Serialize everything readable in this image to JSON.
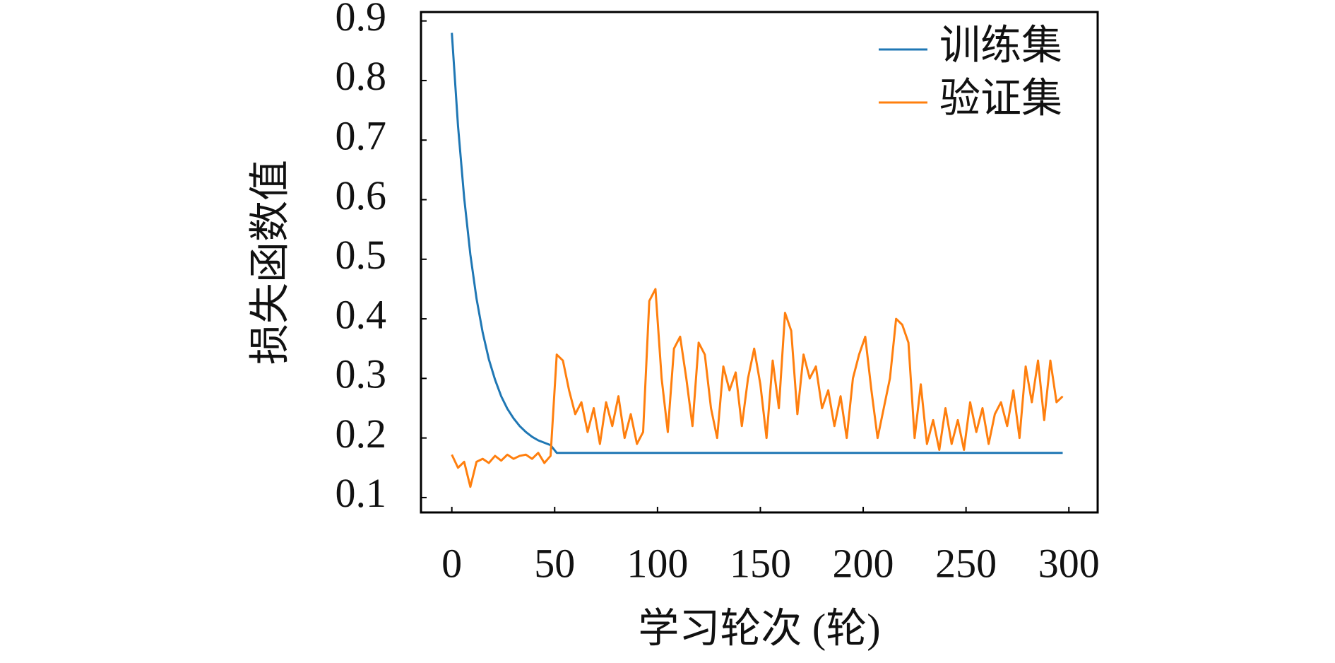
{
  "chart_data": {
    "type": "line",
    "xlabel": "学习轮次 (轮)",
    "ylabel": "损失函数值",
    "x": [
      0,
      3,
      6,
      9,
      12,
      15,
      18,
      21,
      24,
      27,
      30,
      33,
      36,
      39,
      42,
      45,
      48,
      51,
      54,
      57,
      60,
      63,
      66,
      69,
      72,
      75,
      78,
      81,
      84,
      87,
      90,
      93,
      96,
      99,
      102,
      105,
      108,
      111,
      114,
      117,
      120,
      123,
      126,
      129,
      132,
      135,
      138,
      141,
      144,
      147,
      150,
      153,
      156,
      159,
      162,
      165,
      168,
      171,
      174,
      177,
      180,
      183,
      186,
      189,
      192,
      195,
      198,
      201,
      204,
      207,
      210,
      213,
      216,
      219,
      222,
      225,
      228,
      231,
      234,
      237,
      240,
      243,
      246,
      249,
      252,
      255,
      258,
      261,
      264,
      267,
      270,
      273,
      276,
      279,
      282,
      285,
      288,
      291,
      294,
      297
    ],
    "series": [
      {
        "name": "训练集",
        "color": "#1f77b4",
        "values": [
          0.88,
          0.724,
          0.603,
          0.508,
          0.434,
          0.377,
          0.332,
          0.298,
          0.27,
          0.249,
          0.233,
          0.22,
          0.21,
          0.202,
          0.196,
          0.192,
          0.188,
          0.175,
          0.175,
          0.175,
          0.175,
          0.175,
          0.175,
          0.175,
          0.175,
          0.175,
          0.175,
          0.175,
          0.175,
          0.175,
          0.175,
          0.175,
          0.175,
          0.175,
          0.175,
          0.175,
          0.175,
          0.175,
          0.175,
          0.175,
          0.175,
          0.175,
          0.175,
          0.175,
          0.175,
          0.175,
          0.175,
          0.175,
          0.175,
          0.175,
          0.175,
          0.175,
          0.175,
          0.175,
          0.175,
          0.175,
          0.175,
          0.175,
          0.175,
          0.175,
          0.175,
          0.175,
          0.175,
          0.175,
          0.175,
          0.175,
          0.175,
          0.175,
          0.175,
          0.175,
          0.175,
          0.175,
          0.175,
          0.175,
          0.175,
          0.175,
          0.175,
          0.175,
          0.175,
          0.175,
          0.175,
          0.175,
          0.175,
          0.175,
          0.175,
          0.175,
          0.175,
          0.175,
          0.175,
          0.175,
          0.175,
          0.175,
          0.175,
          0.175,
          0.175,
          0.175,
          0.175,
          0.175,
          0.175,
          0.175
        ]
      },
      {
        "name": "验证集",
        "color": "#ff7f0e",
        "values": [
          0.172,
          0.15,
          0.16,
          0.118,
          0.16,
          0.165,
          0.158,
          0.17,
          0.162,
          0.172,
          0.165,
          0.17,
          0.172,
          0.165,
          0.175,
          0.158,
          0.17,
          0.34,
          0.33,
          0.28,
          0.24,
          0.26,
          0.21,
          0.25,
          0.19,
          0.26,
          0.22,
          0.27,
          0.2,
          0.24,
          0.19,
          0.21,
          0.43,
          0.45,
          0.3,
          0.21,
          0.35,
          0.37,
          0.3,
          0.22,
          0.36,
          0.34,
          0.25,
          0.2,
          0.32,
          0.28,
          0.31,
          0.22,
          0.3,
          0.35,
          0.29,
          0.2,
          0.33,
          0.25,
          0.41,
          0.38,
          0.24,
          0.34,
          0.3,
          0.32,
          0.25,
          0.28,
          0.22,
          0.27,
          0.2,
          0.3,
          0.34,
          0.37,
          0.28,
          0.2,
          0.25,
          0.3,
          0.4,
          0.39,
          0.36,
          0.2,
          0.29,
          0.19,
          0.23,
          0.18,
          0.25,
          0.19,
          0.23,
          0.18,
          0.26,
          0.21,
          0.25,
          0.19,
          0.24,
          0.26,
          0.22,
          0.28,
          0.2,
          0.32,
          0.26,
          0.33,
          0.23,
          0.33,
          0.26,
          0.27
        ]
      }
    ],
    "xlim": [
      -15,
      314
    ],
    "xticks": [
      0,
      50,
      100,
      150,
      200,
      250,
      300
    ],
    "ylim": [
      0.075,
      0.915
    ],
    "yticks": [
      0.1,
      0.2,
      0.3,
      0.4,
      0.5,
      0.6,
      0.7,
      0.8,
      0.9
    ],
    "grid": false,
    "legend": "upper right"
  }
}
